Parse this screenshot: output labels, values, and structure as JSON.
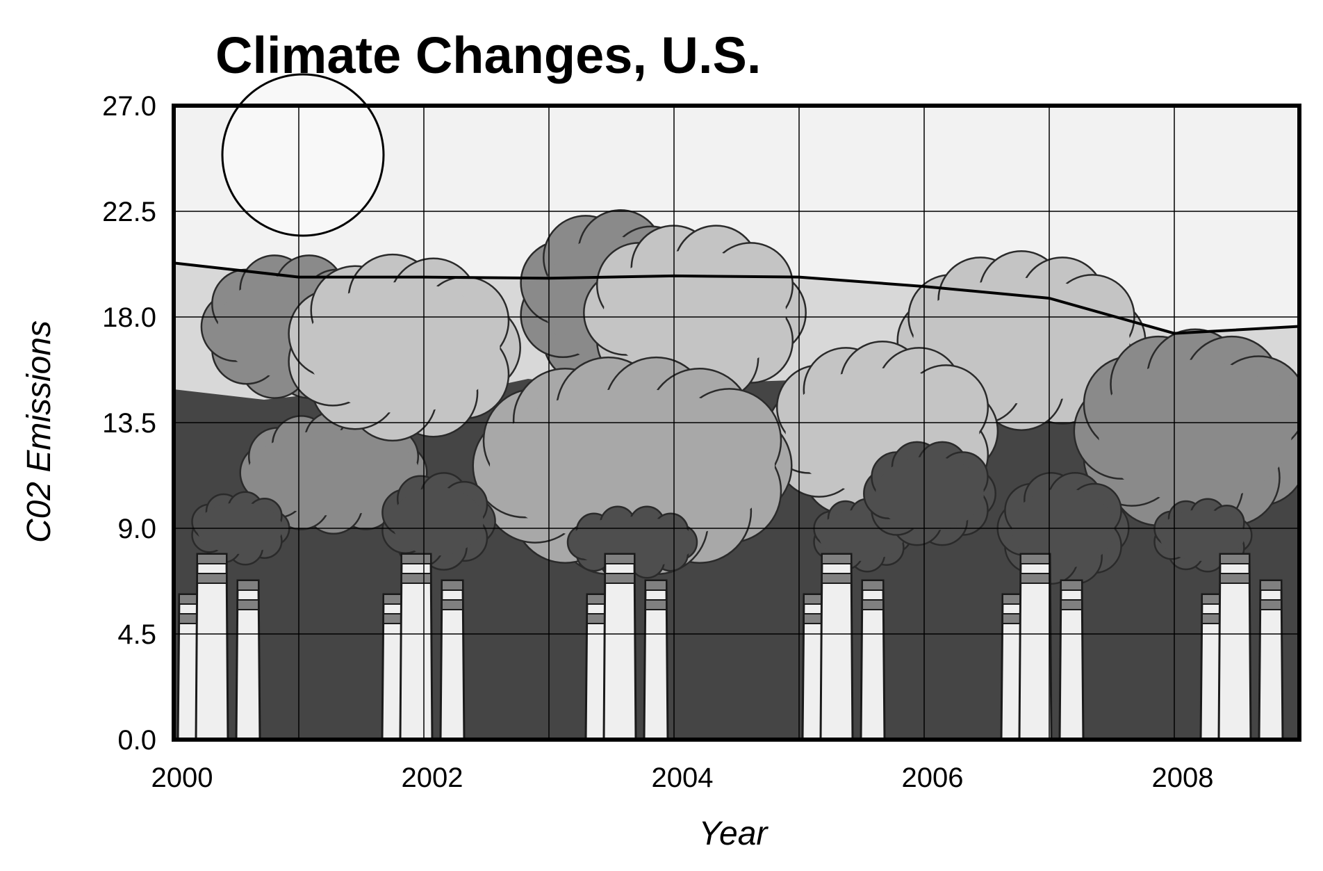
{
  "chart_data": {
    "type": "area",
    "title": "Climate Changes, U.S.",
    "xlabel": "Year",
    "ylabel": "C02 Emissions",
    "x_ticks": [
      "2000",
      "2002",
      "2004",
      "2006",
      "2008"
    ],
    "y_ticks": [
      "0.0",
      "4.5",
      "9.0",
      "13.5",
      "18.0",
      "22.5",
      "27.0"
    ],
    "xlim": [
      2000,
      2009
    ],
    "ylim": [
      0,
      27
    ],
    "grid": true,
    "series": [
      {
        "x": [
          2000,
          2001,
          2002,
          2003,
          2004,
          2005,
          2006,
          2007,
          2008,
          2009
        ],
        "values": [
          20.3,
          19.7,
          19.7,
          19.65,
          19.75,
          19.7,
          19.3,
          18.8,
          17.3,
          17.6
        ]
      }
    ],
    "colors": {
      "sky": "#f2f2f2",
      "sun": "#f8f8f8",
      "area_top": "#d8d8d8",
      "area_dark": "#454545",
      "cloud_light": "#c4c4c4",
      "cloud_mid": "#a8a8a8",
      "cloud_gray": "#8a8a8a",
      "cloud_dark": "#4e4e4e",
      "stack": "#efefef",
      "stack_band": "#808080",
      "line": "#000000",
      "grid": "#000000"
    }
  }
}
